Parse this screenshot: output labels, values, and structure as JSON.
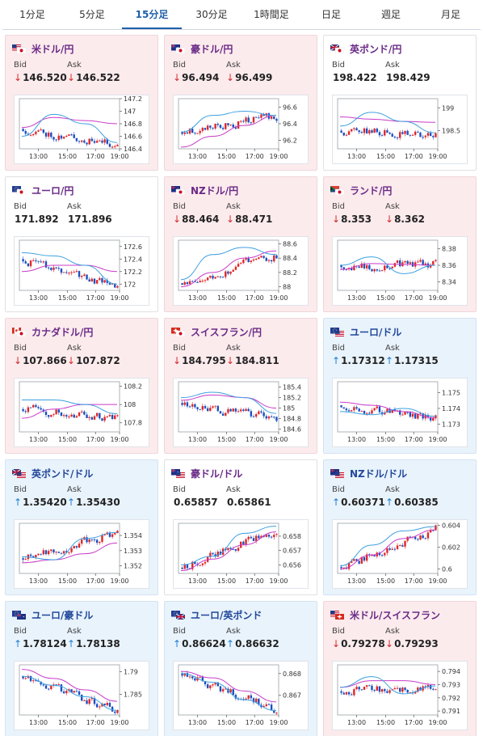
{
  "tabs": [
    {
      "label": "1分足",
      "active": false
    },
    {
      "label": "5分足",
      "active": false
    },
    {
      "label": "15分足",
      "active": true
    },
    {
      "label": "30分足",
      "active": false
    },
    {
      "label": "1時間足",
      "active": false
    },
    {
      "label": "日足",
      "active": false
    },
    {
      "label": "週足",
      "active": false
    },
    {
      "label": "月足",
      "active": false
    }
  ],
  "labels": {
    "bid": "Bid",
    "ask": "Ask"
  },
  "colors": {
    "down_bg": "#fcebed",
    "up_bg": "#e9f3fc",
    "candle_up": "#e0262a",
    "candle_down": "#1c4fbf",
    "ma_short": "#3da0e0",
    "ma_long": "#c83cc8"
  },
  "x_ticks": [
    "13:00",
    "15:00",
    "17:00",
    "19:00"
  ],
  "cards": [
    {
      "pair": "米ドル/円",
      "flag": "us-jp",
      "trend": "down",
      "bid_dir": "down",
      "ask_dir": "down",
      "bid": "146.520",
      "ask": "146.522",
      "chart_data": {
        "type": "candlestick",
        "y_ticks": [
          "147.2",
          "147",
          "146.8",
          "146.6",
          "146.4"
        ],
        "ylim": [
          146.4,
          147.2
        ],
        "start": 146.72,
        "end": 146.45,
        "ma_long": [
          146.74,
          146.9,
          146.85,
          146.8
        ],
        "ma_short": [
          146.6,
          146.95,
          146.8,
          146.5
        ],
        "seed": 11
      }
    },
    {
      "pair": "豪ドル/円",
      "flag": "au-jp",
      "trend": "down",
      "bid_dir": "down",
      "ask_dir": "down",
      "bid": "96.494",
      "ask": "96.499",
      "chart_data": {
        "type": "candlestick",
        "y_ticks": [
          "96.6",
          "96.4",
          "96.2"
        ],
        "ylim": [
          96.1,
          96.7
        ],
        "start": 96.3,
        "end": 96.5,
        "ma_long": [
          96.12,
          96.25,
          96.38,
          96.5
        ],
        "ma_short": [
          96.3,
          96.5,
          96.55,
          96.5
        ],
        "seed": 23
      }
    },
    {
      "pair": "英ポンド/円",
      "flag": "gb-jp",
      "trend": "none",
      "bid_dir": "",
      "ask_dir": "",
      "bid": "198.422",
      "ask": "198.429",
      "chart_data": {
        "type": "candlestick",
        "y_ticks": [
          "199",
          "198.5"
        ],
        "ylim": [
          198.1,
          199.2
        ],
        "start": 198.5,
        "end": 198.4,
        "ma_long": [
          198.8,
          198.75,
          198.7,
          198.68
        ],
        "ma_short": [
          198.6,
          198.9,
          198.7,
          198.45
        ],
        "seed": 37
      }
    },
    {
      "pair": "ユーロ/円",
      "flag": "eu-jp",
      "trend": "none",
      "bid_dir": "",
      "ask_dir": "",
      "bid": "171.892",
      "ask": "171.896",
      "chart_data": {
        "type": "candlestick",
        "y_ticks": [
          "172.6",
          "172.4",
          "172.2",
          "172"
        ],
        "ylim": [
          171.9,
          172.7
        ],
        "start": 172.4,
        "end": 171.95,
        "ma_long": [
          172.2,
          172.3,
          172.3,
          172.2
        ],
        "ma_short": [
          172.5,
          172.45,
          172.3,
          172.0
        ],
        "seed": 41
      }
    },
    {
      "pair": "NZドル/円",
      "flag": "nz-jp",
      "trend": "down",
      "bid_dir": "down",
      "ask_dir": "down",
      "bid": "88.464",
      "ask": "88.471",
      "chart_data": {
        "type": "candlestick",
        "y_ticks": [
          "88.6",
          "88.4",
          "88.2",
          "88"
        ],
        "ylim": [
          87.95,
          88.65
        ],
        "start": 88.05,
        "end": 88.45,
        "ma_long": [
          88.0,
          88.2,
          88.4,
          88.5
        ],
        "ma_short": [
          88.1,
          88.45,
          88.55,
          88.45
        ],
        "seed": 53
      }
    },
    {
      "pair": "ランド/円",
      "flag": "za-jp",
      "trend": "down",
      "bid_dir": "down",
      "ask_dir": "down",
      "bid": "8.353",
      "ask": "8.362",
      "chart_data": {
        "type": "candlestick",
        "y_ticks": [
          "8.38",
          "8.36",
          "8.34"
        ],
        "ylim": [
          8.33,
          8.39
        ],
        "start": 8.36,
        "end": 8.36,
        "ma_long": [
          8.355,
          8.362,
          8.361,
          8.36
        ],
        "ma_short": [
          8.36,
          8.37,
          8.35,
          8.36
        ],
        "seed": 67
      }
    },
    {
      "pair": "カナダドル/円",
      "flag": "ca-jp",
      "trend": "down",
      "bid_dir": "down",
      "ask_dir": "down",
      "bid": "107.866",
      "ask": "107.872",
      "chart_data": {
        "type": "candlestick",
        "y_ticks": [
          "108.2",
          "108",
          "107.8"
        ],
        "ylim": [
          107.7,
          108.25
        ],
        "start": 107.95,
        "end": 107.85,
        "ma_long": [
          107.85,
          107.95,
          108.0,
          108.0
        ],
        "ma_short": [
          108.05,
          108.05,
          108.0,
          107.9
        ],
        "seed": 71
      }
    },
    {
      "pair": "スイスフラン/円",
      "flag": "ch-jp",
      "trend": "down",
      "bid_dir": "down",
      "ask_dir": "down",
      "bid": "184.795",
      "ask": "184.811",
      "chart_data": {
        "type": "candlestick",
        "y_ticks": [
          "185.4",
          "185.2",
          "185",
          "184.8",
          "184.6"
        ],
        "ylim": [
          184.55,
          185.5
        ],
        "start": 185.1,
        "end": 184.8,
        "ma_long": [
          185.15,
          185.25,
          185.2,
          185.0
        ],
        "ma_short": [
          185.2,
          185.3,
          185.2,
          184.9
        ],
        "seed": 83
      }
    },
    {
      "pair": "ユーロ/ドル",
      "flag": "eu-us",
      "trend": "up",
      "bid_dir": "up",
      "ask_dir": "up",
      "bid": "1.17312",
      "ask": "1.17315",
      "chart_data": {
        "type": "candlestick",
        "y_ticks": [
          "1.175",
          "1.174",
          "1.173"
        ],
        "ylim": [
          1.1725,
          1.1757
        ],
        "start": 1.1742,
        "end": 1.1733,
        "ma_long": [
          1.1744,
          1.1742,
          1.1738,
          1.1734
        ],
        "ma_short": [
          1.1738,
          1.1736,
          1.174,
          1.1735
        ],
        "seed": 97
      }
    },
    {
      "pair": "英ポンド/ドル",
      "flag": "gb-us",
      "trend": "up",
      "bid_dir": "up",
      "ask_dir": "up",
      "bid": "1.35420",
      "ask": "1.35430",
      "chart_data": {
        "type": "candlestick",
        "y_ticks": [
          "1.354",
          "1.353",
          "1.352"
        ],
        "ylim": [
          1.3515,
          1.3548
        ],
        "start": 1.3525,
        "end": 1.3542,
        "ma_long": [
          1.3522,
          1.3524,
          1.3528,
          1.3535
        ],
        "ma_short": [
          1.3526,
          1.3524,
          1.3538,
          1.3542
        ],
        "seed": 101
      }
    },
    {
      "pair": "豪ドル/ドル",
      "flag": "au-us",
      "trend": "none",
      "bid_dir": "",
      "ask_dir": "",
      "bid": "0.65857",
      "ask": "0.65861",
      "chart_data": {
        "type": "candlestick",
        "y_ticks": [
          "0.658",
          "0.657",
          "0.656"
        ],
        "ylim": [
          0.6554,
          0.6589
        ],
        "start": 0.6558,
        "end": 0.6586,
        "ma_long": [
          0.6556,
          0.6564,
          0.6574,
          0.6583
        ],
        "ma_short": [
          0.656,
          0.6566,
          0.6582,
          0.6587
        ],
        "seed": 113
      }
    },
    {
      "pair": "NZドル/ドル",
      "flag": "nz-us",
      "trend": "up",
      "bid_dir": "up",
      "ask_dir": "up",
      "bid": "0.60371",
      "ask": "0.60385",
      "chart_data": {
        "type": "candlestick",
        "y_ticks": [
          "0.604",
          "0.602",
          "0.6"
        ],
        "ylim": [
          0.5996,
          0.6042
        ],
        "start": 0.6002,
        "end": 0.6038,
        "ma_long": [
          0.6,
          0.6013,
          0.6028,
          0.6036
        ],
        "ma_short": [
          0.6003,
          0.6022,
          0.6035,
          0.6039
        ],
        "seed": 127
      }
    },
    {
      "pair": "ユーロ/豪ドル",
      "flag": "eu-au",
      "trend": "up",
      "bid_dir": "up",
      "ask_dir": "up",
      "bid": "1.78124",
      "ask": "1.78138",
      "chart_data": {
        "type": "candlestick",
        "y_ticks": [
          "1.79",
          "1.785"
        ],
        "ylim": [
          1.7805,
          1.7915
        ],
        "start": 1.789,
        "end": 1.7812,
        "ma_long": [
          1.7905,
          1.7885,
          1.786,
          1.7835
        ],
        "ma_short": [
          1.789,
          1.787,
          1.7845,
          1.7815
        ],
        "seed": 131
      }
    },
    {
      "pair": "ユーロ/英ポンド",
      "flag": "eu-gb",
      "trend": "up",
      "bid_dir": "up",
      "ask_dir": "up",
      "bid": "0.86624",
      "ask": "0.86632",
      "chart_data": {
        "type": "candlestick",
        "y_ticks": [
          "0.868",
          "0.867"
        ],
        "ylim": [
          0.8661,
          0.8684
        ],
        "start": 0.868,
        "end": 0.8663,
        "ma_long": [
          0.8681,
          0.8678,
          0.8672,
          0.8667
        ],
        "ma_short": [
          0.868,
          0.8676,
          0.8668,
          0.8663
        ],
        "seed": 139
      }
    },
    {
      "pair": "米ドル/スイスフラン",
      "flag": "us-ch",
      "trend": "down",
      "bid_dir": "down",
      "ask_dir": "down",
      "bid": "0.79278",
      "ask": "0.79293",
      "chart_data": {
        "type": "candlestick",
        "y_ticks": [
          "0.794",
          "0.793",
          "0.792",
          "0.791"
        ],
        "ylim": [
          0.7907,
          0.7945
        ],
        "start": 0.7925,
        "end": 0.7928,
        "ma_long": [
          0.7928,
          0.7933,
          0.7933,
          0.793
        ],
        "ma_short": [
          0.7928,
          0.7936,
          0.7923,
          0.7929
        ],
        "seed": 149
      }
    }
  ]
}
